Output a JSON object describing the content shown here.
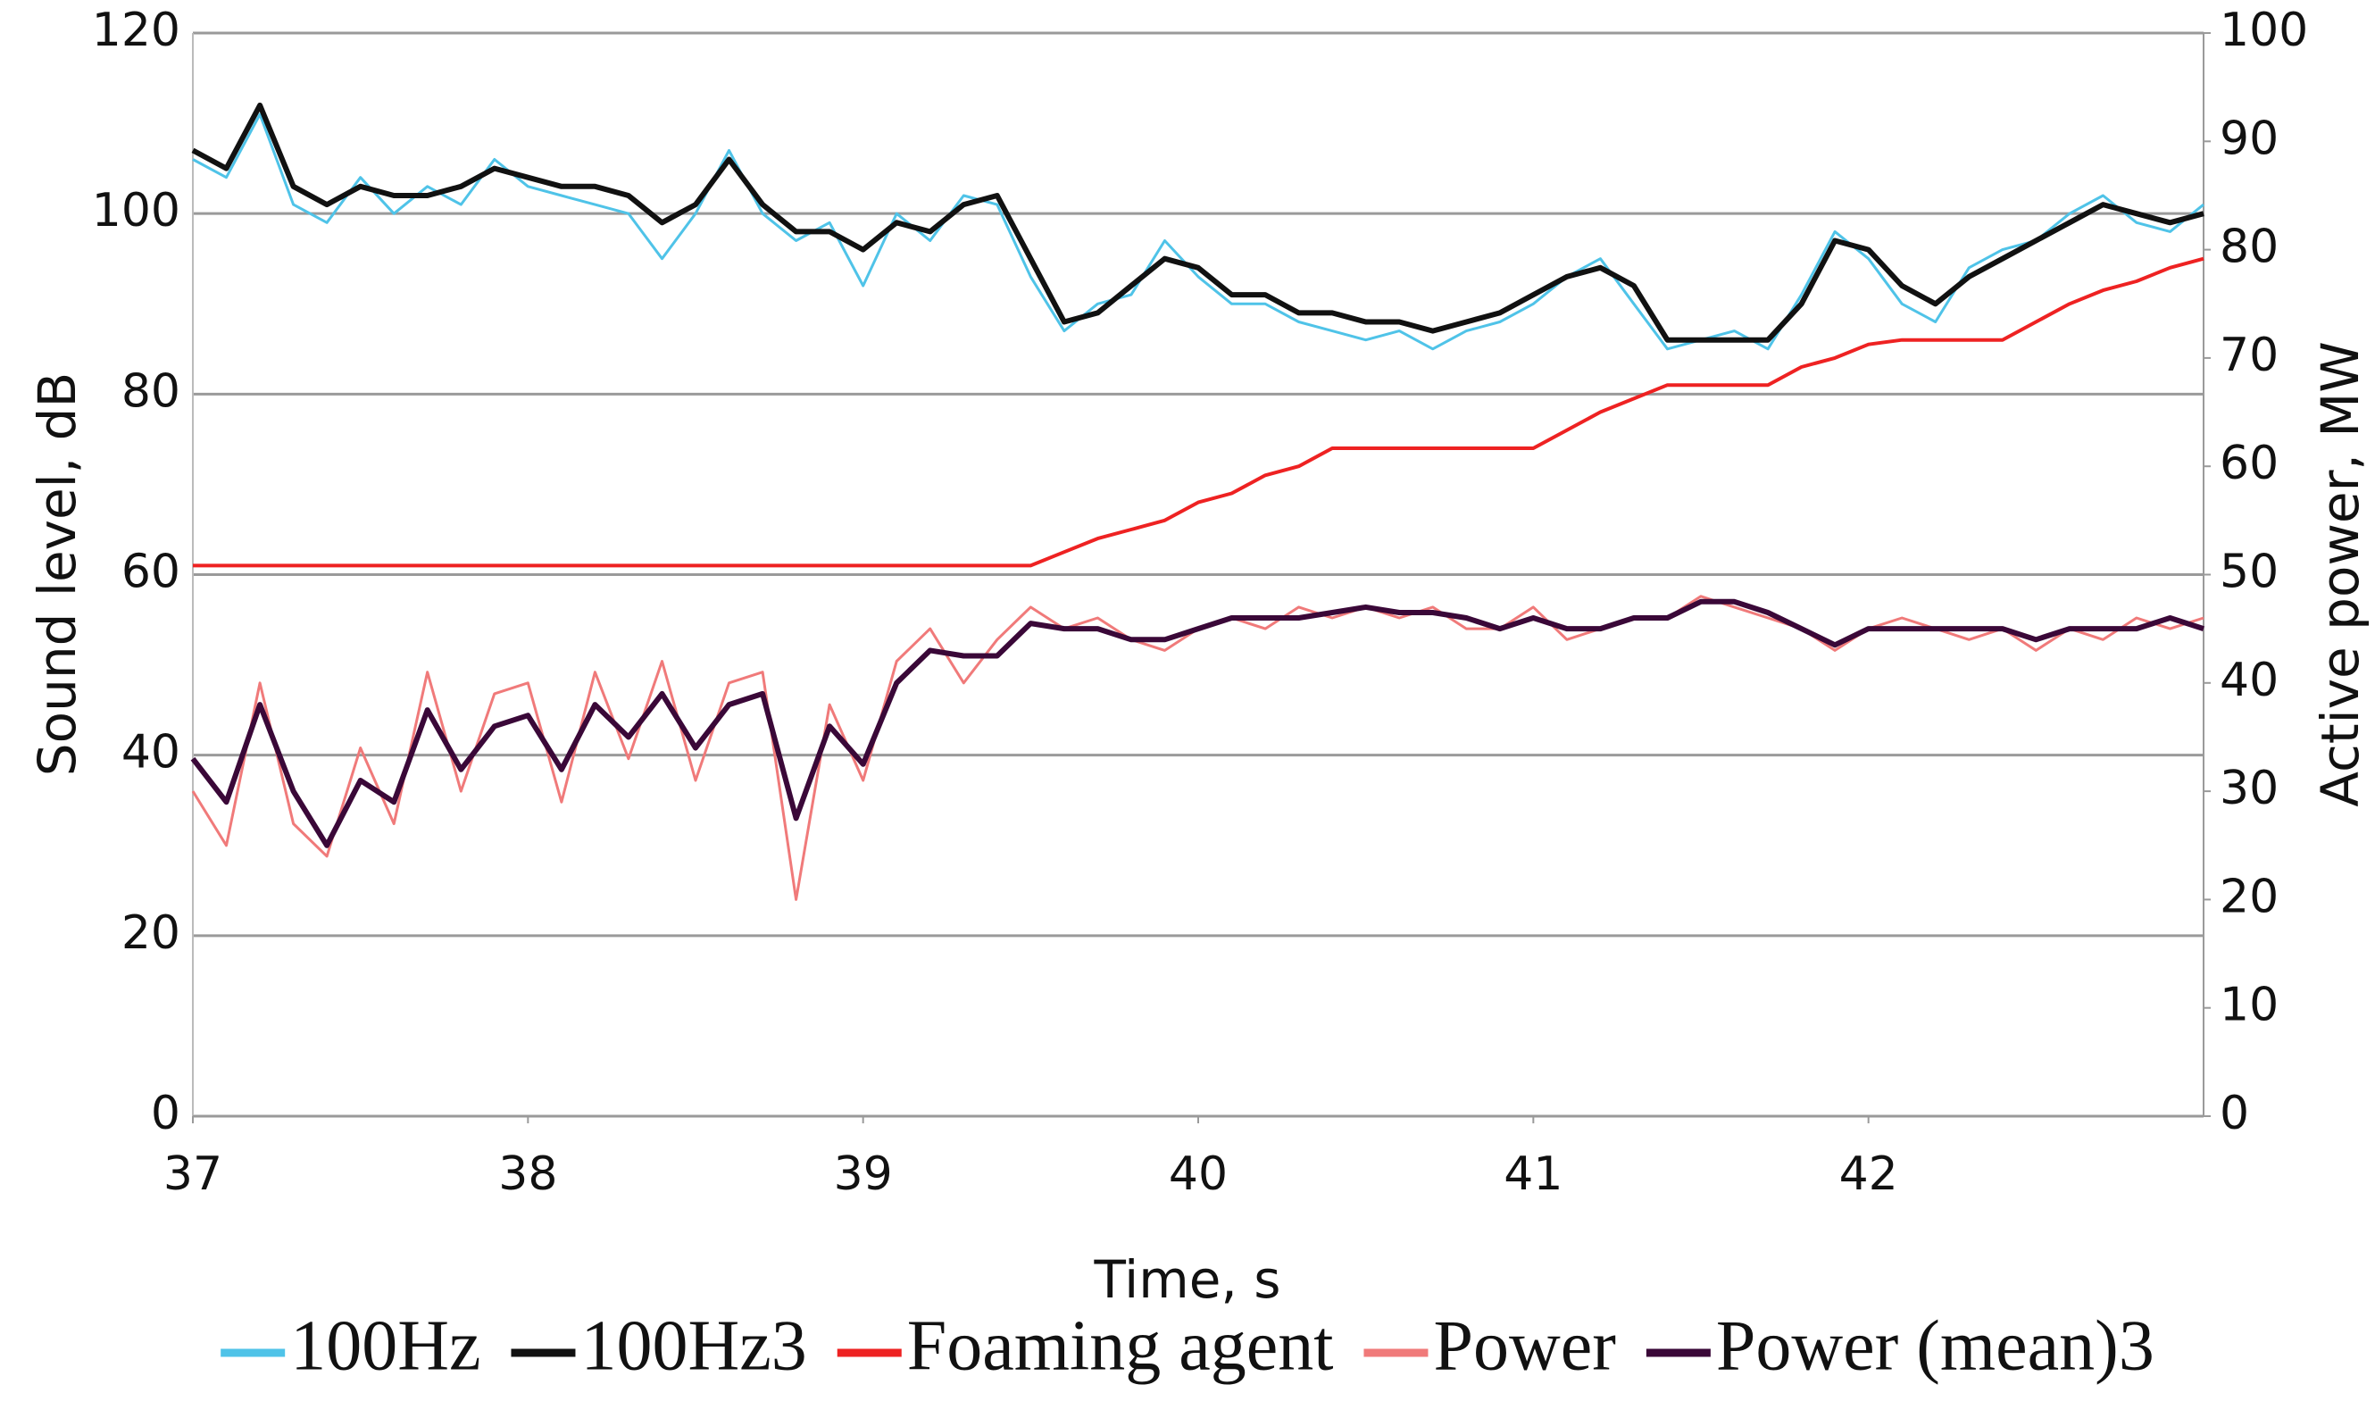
{
  "chart_data": {
    "type": "line",
    "xlabel": "Time, s",
    "ylabel": "Sound level, dB",
    "y2label": "Active power, MW",
    "grid": true,
    "legend": "bottom",
    "xlim": [
      37,
      43
    ],
    "xticks": [
      37,
      38,
      39,
      40,
      41,
      42
    ],
    "ylim": [
      0,
      120
    ],
    "yticks": [
      0,
      20,
      40,
      60,
      80,
      100,
      120
    ],
    "y2lim": [
      0,
      100
    ],
    "y2ticks": [
      0,
      10,
      20,
      30,
      40,
      50,
      60,
      70,
      80,
      90,
      100
    ],
    "x": [
      37.0,
      37.1,
      37.2,
      37.3,
      37.4,
      37.5,
      37.6,
      37.7,
      37.8,
      37.9,
      38.0,
      38.1,
      38.2,
      38.3,
      38.4,
      38.5,
      38.6,
      38.7,
      38.8,
      38.9,
      39.0,
      39.1,
      39.2,
      39.3,
      39.4,
      39.5,
      39.6,
      39.7,
      39.8,
      39.9,
      40.0,
      40.1,
      40.2,
      40.3,
      40.4,
      40.5,
      40.6,
      40.7,
      40.8,
      40.9,
      41.0,
      41.1,
      41.2,
      41.3,
      41.4,
      41.5,
      41.6,
      41.7,
      41.8,
      41.9,
      42.0,
      42.1,
      42.2,
      42.3,
      42.4,
      42.5,
      42.6,
      42.7,
      42.8,
      42.9,
      43.0
    ],
    "series": [
      {
        "name": "100Hz",
        "color": "#4fc3e8",
        "width": 3,
        "values": [
          106,
          104,
          111,
          101,
          99,
          104,
          100,
          103,
          101,
          106,
          103,
          102,
          101,
          100,
          95,
          100,
          107,
          100,
          97,
          99,
          92,
          100,
          97,
          102,
          101,
          93,
          87,
          90,
          91,
          97,
          93,
          90,
          90,
          88,
          87,
          86,
          87,
          85,
          87,
          88,
          90,
          93,
          95,
          90,
          85,
          86,
          87,
          85,
          91,
          98,
          95,
          90,
          88,
          94,
          96,
          97,
          100,
          102,
          99,
          98,
          101
        ]
      },
      {
        "name": "100Hz3",
        "color": "#111111",
        "width": 6,
        "values": [
          107,
          105,
          112,
          103,
          101,
          103,
          102,
          102,
          103,
          105,
          104,
          103,
          103,
          102,
          99,
          101,
          106,
          101,
          98,
          98,
          96,
          99,
          98,
          101,
          102,
          95,
          88,
          89,
          92,
          95,
          94,
          91,
          91,
          89,
          89,
          88,
          88,
          87,
          88,
          89,
          91,
          93,
          94,
          92,
          86,
          86,
          86,
          86,
          90,
          97,
          96,
          92,
          90,
          93,
          95,
          97,
          99,
          101,
          100,
          99,
          100
        ]
      },
      {
        "name": "Foaming agent",
        "color": "#ee2222",
        "width": 4,
        "values": [
          61,
          61,
          61,
          61,
          61,
          61,
          61,
          61,
          61,
          61,
          61,
          61,
          61,
          61,
          61,
          61,
          61,
          61,
          61,
          61,
          61,
          61,
          61,
          61,
          61,
          61,
          62.5,
          64,
          65,
          66,
          68,
          69,
          71,
          72,
          74,
          74,
          74,
          74,
          74,
          74,
          74,
          76,
          78,
          79.5,
          81,
          81,
          81,
          81,
          83,
          84,
          85.5,
          86,
          86,
          86,
          86,
          88,
          90,
          91.5,
          92.5,
          94,
          95
        ]
      },
      {
        "name": "Power",
        "color": "#f07a7a",
        "width": 3,
        "axis": "y2",
        "values": [
          30,
          25,
          40,
          27,
          24,
          34,
          27,
          41,
          30,
          39,
          40,
          29,
          41,
          33,
          42,
          31,
          40,
          41,
          20,
          38,
          31,
          42,
          45,
          40,
          44,
          47,
          45,
          46,
          44,
          43,
          45,
          46,
          45,
          47,
          46,
          47,
          46,
          47,
          45,
          45,
          47,
          44,
          45,
          46,
          46,
          48,
          47,
          46,
          45,
          43,
          45,
          46,
          45,
          44,
          45,
          43,
          45,
          44,
          46,
          45,
          46
        ]
      },
      {
        "name": "Power (mean)3",
        "color": "#3a0838",
        "width": 6,
        "axis": "y2",
        "values": [
          33,
          29,
          38,
          30,
          25,
          31,
          29,
          37.5,
          32,
          36,
          37,
          32,
          38,
          35,
          39,
          34,
          38,
          39,
          27.5,
          36,
          32.5,
          40,
          43,
          42.5,
          42.5,
          45.5,
          45,
          45,
          44,
          44,
          45,
          46,
          46,
          46,
          46.5,
          47,
          46.5,
          46.5,
          46,
          45,
          46,
          45,
          45,
          46,
          46,
          47.5,
          47.5,
          46.5,
          45,
          43.5,
          45,
          45,
          45,
          45,
          45,
          44,
          45,
          45,
          45,
          46,
          45
        ]
      }
    ]
  }
}
